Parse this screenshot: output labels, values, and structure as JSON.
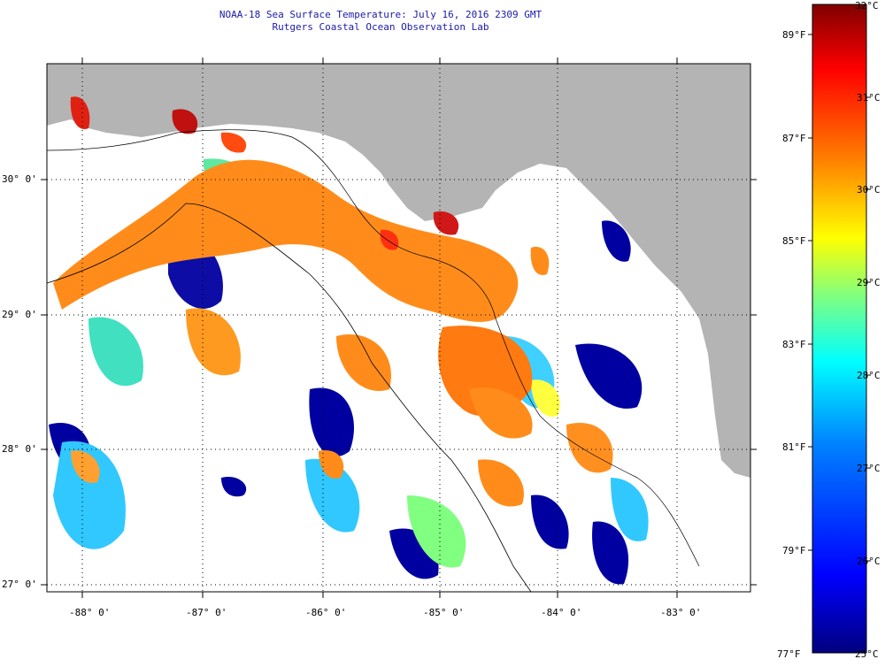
{
  "title": {
    "line1": "NOAA-18 Sea Surface Temperature:  July 16, 2016 2309 GMT",
    "line2": "Rutgers Coastal Ocean Observation Lab",
    "color": "#1a1aa8"
  },
  "map": {
    "longitude_labels": [
      "-88° 0'",
      "-87° 0'",
      "-86° 0'",
      "-85° 0'",
      "-84° 0'",
      "-83° 0'"
    ],
    "latitude_labels": [
      "30° 0'",
      "29° 0'",
      "28° 0'",
      "27° 0'"
    ],
    "land_color": "#b4b4b4",
    "no_data_color": "#ffffff",
    "grid": "dotted"
  },
  "colorbar": {
    "fahrenheit_labels": [
      "89°F",
      "87°F",
      "85°F",
      "83°F",
      "81°F",
      "79°F",
      "77°F"
    ],
    "celsius_labels": [
      "32°C",
      "31°C",
      "30°C",
      "29°C",
      "28°C",
      "27°C",
      "26°C",
      "25°C"
    ],
    "range_celsius": [
      25,
      32
    ],
    "colors": [
      "#00007f",
      "#0000ff",
      "#0080ff",
      "#00ffff",
      "#80ff80",
      "#ffff00",
      "#ff8000",
      "#ff0000",
      "#7f0000"
    ]
  }
}
